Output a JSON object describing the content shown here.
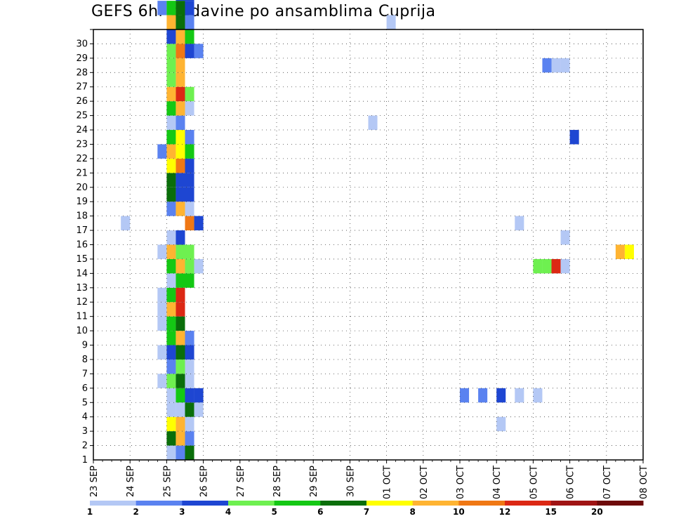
{
  "chart_data": {
    "type": "heatmap",
    "title": "GEFS 6hr padavine po ansamblima Cuprija",
    "y_ticks": [
      "1",
      "2",
      "3",
      "4",
      "5",
      "6",
      "7",
      "8",
      "9",
      "10",
      "11",
      "12",
      "13",
      "14",
      "15",
      "16",
      "17",
      "18",
      "19",
      "20",
      "21",
      "22",
      "23",
      "24",
      "25",
      "26",
      "27",
      "28",
      "29",
      "30"
    ],
    "x_ticks": [
      "23 SEP",
      "24 SEP",
      "25 SEP",
      "26 SEP",
      "27 SEP",
      "28 SEP",
      "29 SEP",
      "30 SEP",
      "01 OCT",
      "02 OCT",
      "03 OCT",
      "04 OCT",
      "05 OCT",
      "06 OCT",
      "07 OCT",
      "08 OCT"
    ],
    "x_time_unit": "6-hour step from 23 SEP 00z",
    "ylim": [
      0,
      30
    ],
    "grid": true,
    "legend": {
      "position": "bottom",
      "labels": [
        "1",
        "2",
        "3",
        "4",
        "5",
        "6",
        "7",
        "8",
        "10",
        "12",
        "15",
        "20"
      ],
      "colors": [
        "#b4c8f5",
        "#5a82f0",
        "#1e46d2",
        "#6ef050",
        "#14c814",
        "#0a6e0a",
        "#ffff00",
        "#ffb432",
        "#f07814",
        "#dc2814",
        "#a01414",
        "#6e0a0a"
      ]
    },
    "class_colors": [
      "#b4c8f5",
      "#5a82f0",
      "#1e46d2",
      "#6ef050",
      "#14c814",
      "#0a6e0a",
      "#ffff00",
      "#ffb432",
      "#f07814",
      "#dc2814",
      "#a01414"
    ],
    "cells": [
      [
        0,
        8,
        0
      ],
      [
        0,
        9,
        1
      ],
      [
        0,
        10,
        5
      ],
      [
        0,
        62,
        4
      ],
      [
        1,
        8,
        5
      ],
      [
        1,
        9,
        7
      ],
      [
        1,
        10,
        1
      ],
      [
        2,
        8,
        6
      ],
      [
        2,
        9,
        7
      ],
      [
        2,
        10,
        0
      ],
      [
        2,
        44,
        0
      ],
      [
        3,
        8,
        0
      ],
      [
        3,
        9,
        0
      ],
      [
        3,
        10,
        5
      ],
      [
        3,
        11,
        0
      ],
      [
        4,
        8,
        0
      ],
      [
        4,
        9,
        4
      ],
      [
        4,
        10,
        2
      ],
      [
        4,
        11,
        2
      ],
      [
        4,
        40,
        1
      ],
      [
        4,
        42,
        1
      ],
      [
        4,
        44,
        2
      ],
      [
        4,
        46,
        0
      ],
      [
        4,
        48,
        0
      ],
      [
        4,
        61,
        0
      ],
      [
        5,
        7,
        0
      ],
      [
        5,
        8,
        3
      ],
      [
        5,
        9,
        5
      ],
      [
        5,
        10,
        0
      ],
      [
        6,
        8,
        1
      ],
      [
        6,
        9,
        3
      ],
      [
        6,
        10,
        0
      ],
      [
        7,
        7,
        0
      ],
      [
        7,
        8,
        2
      ],
      [
        7,
        9,
        5
      ],
      [
        7,
        10,
        2
      ],
      [
        7,
        60,
        0
      ],
      [
        8,
        8,
        4
      ],
      [
        8,
        9,
        7
      ],
      [
        8,
        10,
        1
      ],
      [
        9,
        7,
        0
      ],
      [
        9,
        8,
        4
      ],
      [
        9,
        9,
        5
      ],
      [
        10,
        7,
        0
      ],
      [
        10,
        8,
        7
      ],
      [
        10,
        9,
        9
      ],
      [
        11,
        7,
        0
      ],
      [
        11,
        8,
        4
      ],
      [
        11,
        9,
        9
      ],
      [
        12,
        8,
        0
      ],
      [
        12,
        9,
        4
      ],
      [
        12,
        10,
        4
      ],
      [
        13,
        8,
        4
      ],
      [
        13,
        9,
        7
      ],
      [
        13,
        10,
        3
      ],
      [
        13,
        11,
        0
      ],
      [
        13,
        48,
        3
      ],
      [
        13,
        49,
        3
      ],
      [
        13,
        50,
        9
      ],
      [
        13,
        51,
        0
      ],
      [
        14,
        7,
        0
      ],
      [
        14,
        8,
        7
      ],
      [
        14,
        9,
        3
      ],
      [
        14,
        10,
        3
      ],
      [
        14,
        57,
        7
      ],
      [
        14,
        58,
        6
      ],
      [
        15,
        8,
        0
      ],
      [
        15,
        9,
        2
      ],
      [
        15,
        51,
        0
      ],
      [
        16,
        3,
        0
      ],
      [
        16,
        10,
        8
      ],
      [
        16,
        11,
        2
      ],
      [
        16,
        46,
        0
      ],
      [
        17,
        8,
        1
      ],
      [
        17,
        9,
        7
      ],
      [
        17,
        10,
        0
      ],
      [
        18,
        8,
        5
      ],
      [
        18,
        9,
        2
      ],
      [
        18,
        10,
        2
      ],
      [
        19,
        8,
        5
      ],
      [
        19,
        9,
        2
      ],
      [
        19,
        10,
        2
      ],
      [
        20,
        8,
        6
      ],
      [
        20,
        9,
        8
      ],
      [
        20,
        10,
        2
      ],
      [
        21,
        7,
        1
      ],
      [
        21,
        8,
        7
      ],
      [
        21,
        9,
        6
      ],
      [
        21,
        10,
        4
      ],
      [
        22,
        8,
        4
      ],
      [
        22,
        9,
        6
      ],
      [
        22,
        10,
        1
      ],
      [
        22,
        52,
        2
      ],
      [
        23,
        8,
        0
      ],
      [
        23,
        9,
        1
      ],
      [
        23,
        30,
        0
      ],
      [
        23,
        60,
        2
      ],
      [
        23,
        61,
        2
      ],
      [
        24,
        8,
        4
      ],
      [
        24,
        9,
        7
      ],
      [
        24,
        10,
        0
      ],
      [
        25,
        8,
        7
      ],
      [
        25,
        9,
        9
      ],
      [
        25,
        10,
        3
      ],
      [
        26,
        8,
        3
      ],
      [
        26,
        9,
        7
      ],
      [
        27,
        8,
        3
      ],
      [
        27,
        9,
        7
      ],
      [
        27,
        49,
        1
      ],
      [
        27,
        50,
        0
      ],
      [
        27,
        51,
        0
      ],
      [
        28,
        8,
        3
      ],
      [
        28,
        9,
        8
      ],
      [
        28,
        10,
        2
      ],
      [
        28,
        11,
        1
      ],
      [
        29,
        8,
        2
      ],
      [
        29,
        9,
        7
      ],
      [
        29,
        10,
        4
      ],
      [
        30,
        8,
        7
      ],
      [
        30,
        9,
        5
      ],
      [
        30,
        10,
        1
      ],
      [
        30,
        32,
        0
      ],
      [
        31,
        7,
        1
      ],
      [
        31,
        8,
        4
      ],
      [
        31,
        9,
        5
      ],
      [
        31,
        10,
        2
      ],
      [
        32,
        9,
        2
      ],
      [
        32,
        10,
        2
      ]
    ]
  }
}
